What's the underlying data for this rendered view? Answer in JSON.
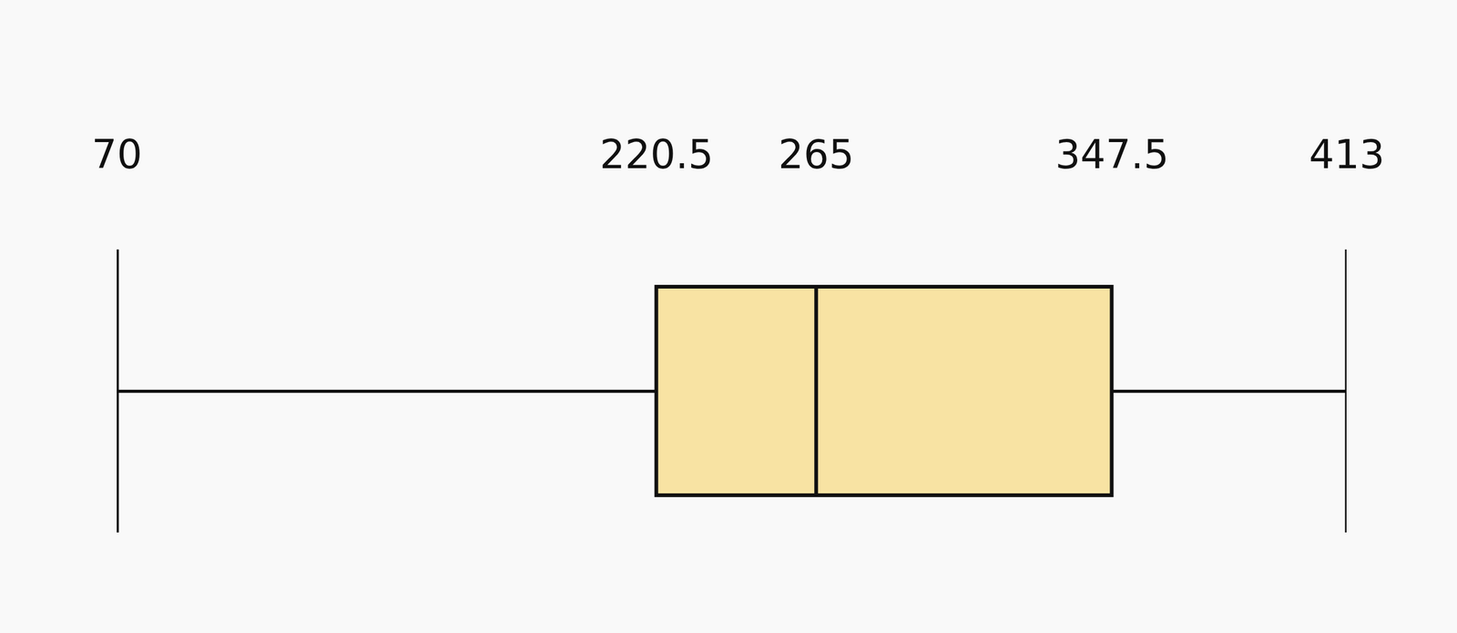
{
  "chart_data": {
    "type": "box",
    "orientation": "horizontal",
    "stats": {
      "min": 70,
      "q1": 220.5,
      "median": 265,
      "q3": 347.5,
      "max": 413
    },
    "color": "#f8e3a3",
    "xlim": [
      70,
      413
    ],
    "xticks": [
      70,
      220.5,
      265,
      347.5,
      413
    ]
  }
}
